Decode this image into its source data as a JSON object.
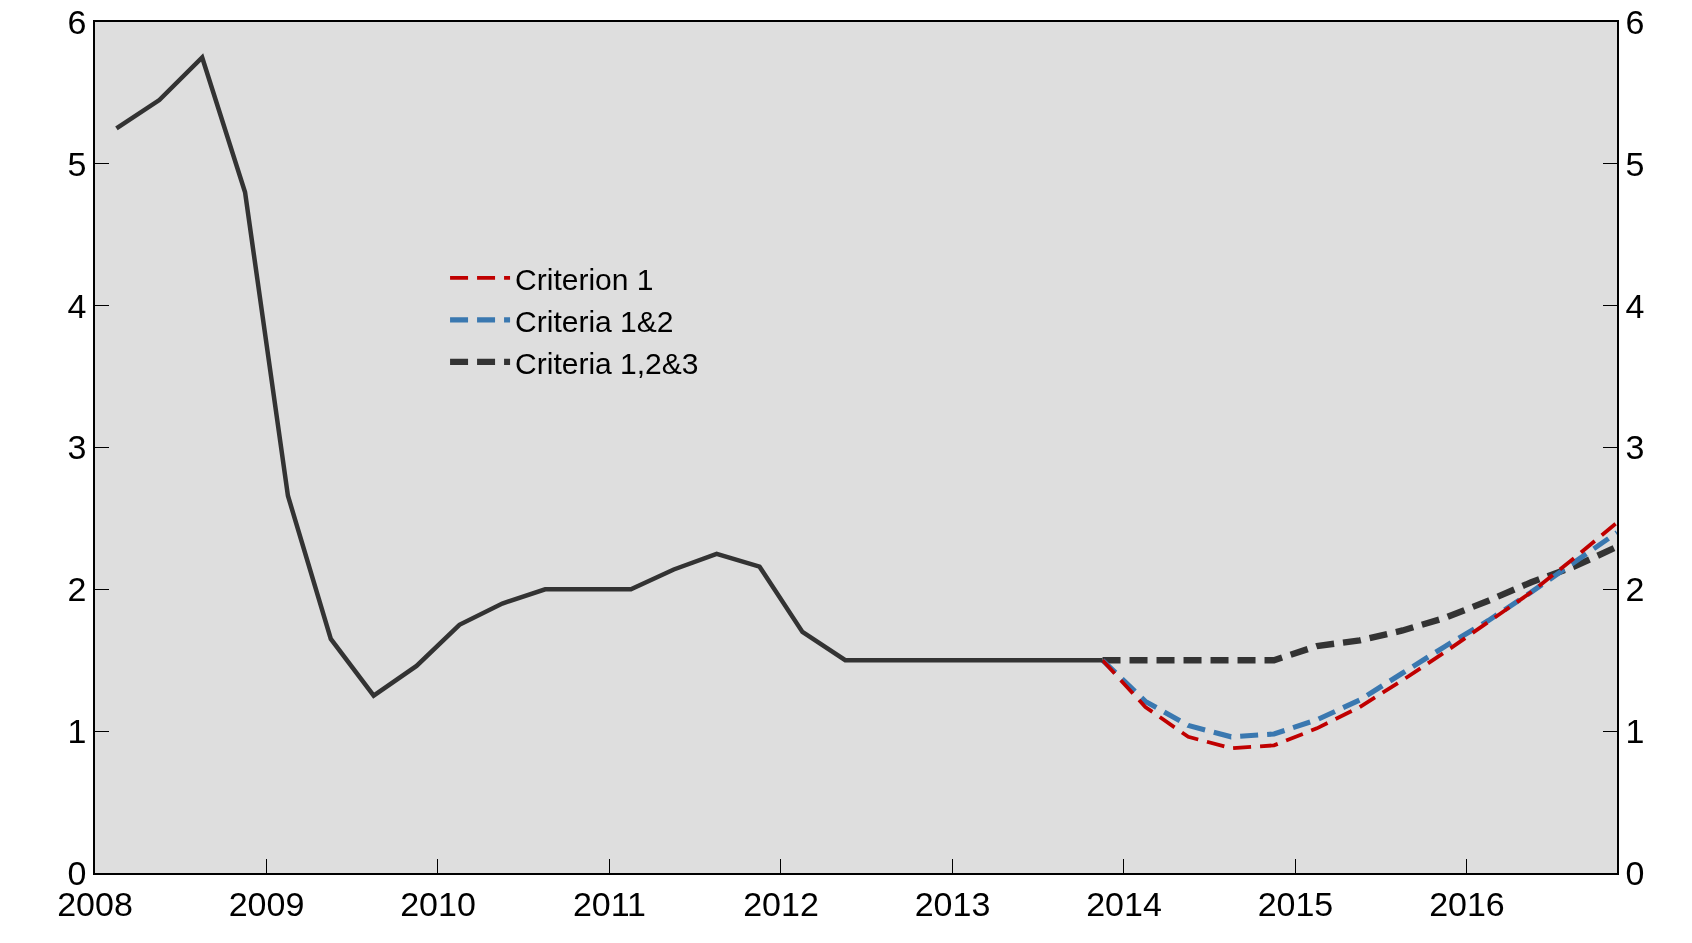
{
  "chart_data": {
    "type": "line",
    "x": [
      2008.125,
      2008.375,
      2008.625,
      2008.875,
      2009.125,
      2009.375,
      2009.625,
      2009.875,
      2010.125,
      2010.375,
      2010.625,
      2010.875,
      2011.125,
      2011.375,
      2011.625,
      2011.875,
      2012.125,
      2012.375,
      2012.625,
      2012.875,
      2013.125,
      2013.375,
      2013.625,
      2013.875,
      2014.125,
      2014.375,
      2014.625,
      2014.875,
      2015.125,
      2015.375,
      2015.625,
      2015.875,
      2016.125,
      2016.375,
      2016.625,
      2016.875
    ],
    "series": [
      {
        "color": "#333333",
        "line_style": "solid",
        "values": [
          5.25,
          5.45,
          5.75,
          4.8,
          2.66,
          1.65,
          1.25,
          1.46,
          1.75,
          1.9,
          2.0,
          2.0,
          2.0,
          2.14,
          2.25,
          2.16,
          1.7,
          1.5,
          1.5,
          1.5,
          1.5,
          1.5,
          1.5,
          1.5,
          null,
          null,
          null,
          null,
          null,
          null,
          null,
          null,
          null,
          null,
          null,
          null
        ]
      },
      {
        "name": "Criterion 1",
        "color": "#c00000",
        "line_style": "dashed",
        "values": [
          null,
          null,
          null,
          null,
          null,
          null,
          null,
          null,
          null,
          null,
          null,
          null,
          null,
          null,
          null,
          null,
          null,
          null,
          null,
          null,
          null,
          null,
          null,
          1.5,
          1.17,
          0.96,
          0.88,
          0.9,
          1.02,
          1.17,
          1.36,
          1.56,
          1.77,
          1.98,
          2.22,
          2.47
        ]
      },
      {
        "name": "Criteria 1&2",
        "color": "#3a78b0",
        "line_style": "dashed",
        "values": [
          null,
          null,
          null,
          null,
          null,
          null,
          null,
          null,
          null,
          null,
          null,
          null,
          null,
          null,
          null,
          null,
          null,
          null,
          null,
          null,
          null,
          null,
          null,
          1.5,
          1.21,
          1.04,
          0.96,
          0.98,
          1.08,
          1.22,
          1.41,
          1.6,
          1.78,
          1.98,
          2.19,
          2.4
        ]
      },
      {
        "name": "Criteria 1,2&3",
        "color": "#333333",
        "line_style": "dashed",
        "values": [
          null,
          null,
          null,
          null,
          null,
          null,
          null,
          null,
          null,
          null,
          null,
          null,
          null,
          null,
          null,
          null,
          null,
          null,
          null,
          null,
          null,
          null,
          null,
          1.5,
          1.5,
          1.5,
          1.5,
          1.5,
          1.6,
          1.64,
          1.71,
          1.8,
          1.92,
          2.05,
          2.16,
          2.3
        ]
      }
    ],
    "xlim": [
      2008,
      2016.875
    ],
    "xticks": [
      2008,
      2009,
      2010,
      2011,
      2012,
      2013,
      2014,
      2015,
      2016
    ],
    "ylim": [
      0,
      6
    ],
    "yticks": [
      0,
      1,
      2,
      3,
      4,
      5,
      6
    ],
    "y2lim": [
      0,
      6
    ],
    "y2ticks": [
      0,
      1,
      2,
      3,
      4,
      5,
      6
    ],
    "grid": false,
    "legend": "left",
    "marker": "none"
  }
}
